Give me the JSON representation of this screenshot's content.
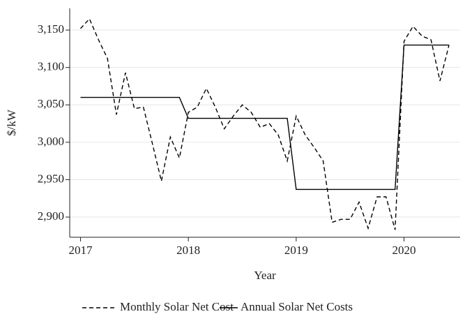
{
  "chart_data": {
    "type": "line",
    "x_label": "Year",
    "y_label": "$/kW",
    "x": [
      2017,
      2017.083,
      2017.167,
      2017.25,
      2017.333,
      2017.417,
      2017.5,
      2017.583,
      2017.667,
      2017.75,
      2017.833,
      2017.917,
      2018,
      2018.083,
      2018.167,
      2018.25,
      2018.333,
      2018.417,
      2018.5,
      2018.583,
      2018.667,
      2018.75,
      2018.833,
      2018.917,
      2019,
      2019.083,
      2019.167,
      2019.25,
      2019.333,
      2019.417,
      2019.5,
      2019.583,
      2019.667,
      2019.75,
      2019.833,
      2019.917,
      2020,
      2020.083,
      2020.167,
      2020.25,
      2020.333,
      2020.417
    ],
    "series": [
      {
        "name": "Monthly Solar Net Cost",
        "color": "#000000",
        "dash": "dashed",
        "values": [
          3152,
          3165,
          3137,
          3112,
          3037,
          3093,
          3045,
          3047,
          2998,
          2948,
          3007,
          2979,
          3040,
          3047,
          3072,
          3047,
          3018,
          3035,
          3050,
          3040,
          3020,
          3025,
          3010,
          2975,
          3035,
          3010,
          2993,
          2975,
          2893,
          2897,
          2897,
          2920,
          2885,
          2927,
          2927,
          2883,
          3135,
          3155,
          3142,
          3137,
          3082,
          3130
        ]
      },
      {
        "name": "Annual Solar Net Costs",
        "color": "#000000",
        "dash": "solid",
        "values": [
          3060,
          3060,
          3060,
          3060,
          3060,
          3060,
          3060,
          3060,
          3060,
          3060,
          3060,
          3060,
          3032,
          3032,
          3032,
          3032,
          3032,
          3032,
          3032,
          3032,
          3032,
          3032,
          3032,
          3032,
          2937,
          2937,
          2937,
          2937,
          2937,
          2937,
          2937,
          2937,
          2937,
          2937,
          2937,
          2937,
          3130,
          3130,
          3130,
          3130,
          3130,
          3130
        ]
      }
    ],
    "xlim": [
      2016.9,
      2020.52
    ],
    "xticks": [
      2017,
      2018,
      2019,
      2020
    ],
    "ylim": [
      2873,
      3179
    ],
    "yticks": [
      {
        "value": 2900,
        "label": "2,900"
      },
      {
        "value": 2950,
        "label": "2,950"
      },
      {
        "value": 3000,
        "label": "3,000"
      },
      {
        "value": 3050,
        "label": "3,050"
      },
      {
        "value": 3100,
        "label": "3,100"
      },
      {
        "value": 3150,
        "label": "3,150"
      }
    ],
    "grid": true,
    "legend_position": "bottom"
  }
}
